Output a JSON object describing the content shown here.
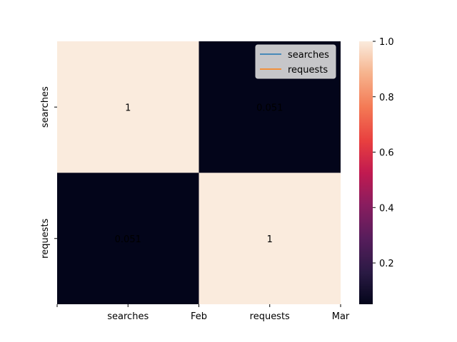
{
  "chart_data": {
    "type": "heatmap",
    "rows": [
      "searches",
      "requests"
    ],
    "columns": [
      "searches",
      "requests"
    ],
    "values": [
      [
        1,
        0.051
      ],
      [
        0.051,
        1
      ]
    ],
    "cell_labels": [
      [
        "1",
        "0.051"
      ],
      [
        "0.051",
        "1"
      ]
    ],
    "x_tick_labels": [
      "",
      "searches",
      "Feb",
      "requests",
      "Mar"
    ],
    "y_tick_labels": [
      "searches",
      "requests"
    ],
    "colorbar": {
      "colormap": "rocket",
      "range": [
        0.051,
        1.0
      ],
      "ticks": [
        0.2,
        0.4,
        0.6,
        0.8,
        1.0
      ],
      "tick_labels": [
        "0.2",
        "0.4",
        "0.6",
        "0.8",
        "1.0"
      ]
    },
    "legend": {
      "placement": "top-right",
      "entries": [
        {
          "label": "searches",
          "color": "#1f77b4"
        },
        {
          "label": "requests",
          "color": "#ff7f0e"
        }
      ]
    },
    "colors": {
      "low": "#03051a",
      "high": "#faebdd"
    }
  }
}
